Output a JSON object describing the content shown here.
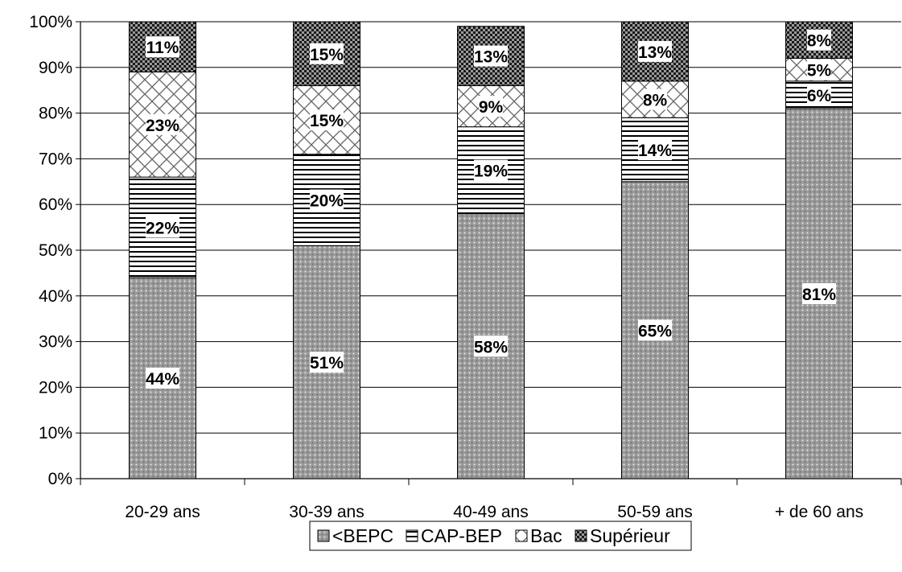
{
  "chart_data": {
    "type": "bar",
    "stacked": true,
    "categories": [
      "20-29 ans",
      "30-39 ans",
      "40-49 ans",
      "50-59 ans",
      "+ de 60 ans"
    ],
    "series": [
      {
        "name": "<BEPC",
        "values": [
          44,
          51,
          58,
          65,
          81
        ],
        "labels": [
          "44%",
          "51%",
          "58%",
          "65%",
          "81%"
        ],
        "pattern": "dots"
      },
      {
        "name": "CAP-BEP",
        "values": [
          22,
          20,
          19,
          14,
          6
        ],
        "labels": [
          "22%",
          "20%",
          "19%",
          "14%",
          "6%"
        ],
        "pattern": "hlines"
      },
      {
        "name": "Bac",
        "values": [
          23,
          15,
          9,
          8,
          5
        ],
        "labels": [
          "23%",
          "15%",
          "9%",
          "8%",
          "5%"
        ],
        "pattern": "diamonds"
      },
      {
        "name": "Supérieur",
        "values": [
          11,
          15,
          13,
          13,
          8
        ],
        "labels": [
          "11%",
          "15%",
          "13%",
          "13%",
          "8%"
        ],
        "pattern": "checker"
      }
    ],
    "y_ticks": [
      "0%",
      "10%",
      "20%",
      "30%",
      "40%",
      "50%",
      "60%",
      "70%",
      "80%",
      "90%",
      "100%"
    ],
    "ylim": [
      0,
      100
    ],
    "title": "",
    "xlabel": "",
    "ylabel": "",
    "grid": true,
    "legend_position": "bottom"
  }
}
